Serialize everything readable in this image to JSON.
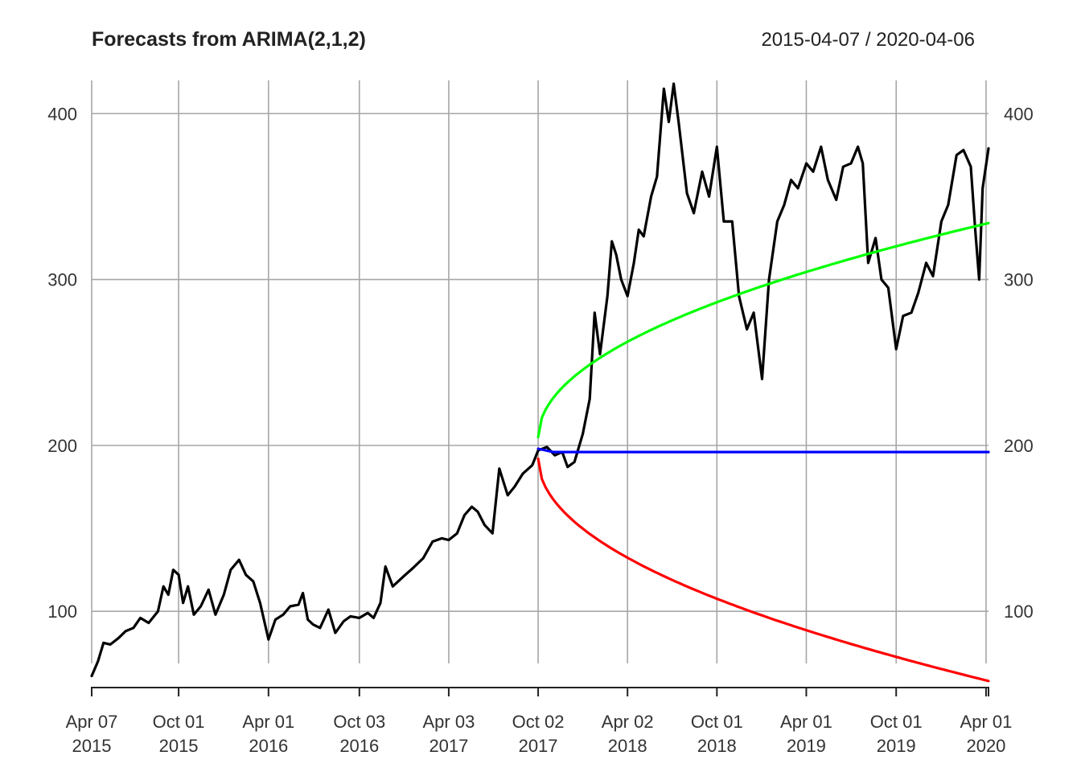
{
  "chart_data": {
    "type": "line",
    "title": "Forecasts from ARIMA(2,1,2)",
    "date_range": "2015-04-07 / 2020-04-06",
    "xlabel": "",
    "ylabel": "",
    "ylim": [
      55,
      420
    ],
    "grid": true,
    "y_ticks": [
      100,
      200,
      300,
      400
    ],
    "x_ticks": [
      {
        "date": "2015-04-07",
        "label1": "Apr 07",
        "label2": "2015"
      },
      {
        "date": "2015-10-01",
        "label1": "Oct 01",
        "label2": "2015"
      },
      {
        "date": "2016-04-01",
        "label1": "Apr 01",
        "label2": "2016"
      },
      {
        "date": "2016-10-03",
        "label1": "Oct 03",
        "label2": "2016"
      },
      {
        "date": "2017-04-03",
        "label1": "Apr 03",
        "label2": "2017"
      },
      {
        "date": "2017-10-02",
        "label1": "Oct 02",
        "label2": "2017"
      },
      {
        "date": "2018-04-02",
        "label1": "Apr 02",
        "label2": "2018"
      },
      {
        "date": "2018-10-01",
        "label1": "Oct 01",
        "label2": "2018"
      },
      {
        "date": "2019-04-01",
        "label1": "Apr 01",
        "label2": "2019"
      },
      {
        "date": "2019-10-01",
        "label1": "Oct 01",
        "label2": "2019"
      },
      {
        "date": "2020-04-01",
        "label1": "Apr 01",
        "label2": "2020"
      }
    ],
    "series": [
      {
        "color": "#000000",
        "points": [
          [
            "2015-04-07",
            61
          ],
          [
            "2015-04-20",
            70
          ],
          [
            "2015-05-01",
            81
          ],
          [
            "2015-05-15",
            80
          ],
          [
            "2015-06-01",
            84
          ],
          [
            "2015-06-15",
            88
          ],
          [
            "2015-07-01",
            90
          ],
          [
            "2015-07-15",
            96
          ],
          [
            "2015-08-01",
            93
          ],
          [
            "2015-08-20",
            100
          ],
          [
            "2015-08-31",
            115
          ],
          [
            "2015-09-10",
            110
          ],
          [
            "2015-09-20",
            125
          ],
          [
            "2015-10-01",
            122
          ],
          [
            "2015-10-10",
            105
          ],
          [
            "2015-10-20",
            115
          ],
          [
            "2015-11-01",
            98
          ],
          [
            "2015-11-15",
            103
          ],
          [
            "2015-12-01",
            113
          ],
          [
            "2015-12-15",
            98
          ],
          [
            "2016-01-01",
            110
          ],
          [
            "2016-01-15",
            125
          ],
          [
            "2016-02-01",
            131
          ],
          [
            "2016-02-15",
            122
          ],
          [
            "2016-03-01",
            118
          ],
          [
            "2016-03-15",
            105
          ],
          [
            "2016-04-01",
            83
          ],
          [
            "2016-04-15",
            95
          ],
          [
            "2016-05-01",
            98
          ],
          [
            "2016-05-15",
            103
          ],
          [
            "2016-06-01",
            104
          ],
          [
            "2016-06-10",
            111
          ],
          [
            "2016-06-20",
            95
          ],
          [
            "2016-07-01",
            92
          ],
          [
            "2016-07-15",
            90
          ],
          [
            "2016-08-01",
            101
          ],
          [
            "2016-08-15",
            87
          ],
          [
            "2016-09-01",
            94
          ],
          [
            "2016-09-15",
            97
          ],
          [
            "2016-10-03",
            96
          ],
          [
            "2016-10-20",
            99
          ],
          [
            "2016-11-01",
            96
          ],
          [
            "2016-11-15",
            105
          ],
          [
            "2016-11-25",
            127
          ],
          [
            "2016-12-10",
            115
          ],
          [
            "2017-01-01",
            121
          ],
          [
            "2017-01-20",
            126
          ],
          [
            "2017-02-10",
            132
          ],
          [
            "2017-03-01",
            142
          ],
          [
            "2017-03-20",
            144
          ],
          [
            "2017-04-03",
            143
          ],
          [
            "2017-04-20",
            147
          ],
          [
            "2017-05-05",
            158
          ],
          [
            "2017-05-20",
            163
          ],
          [
            "2017-06-01",
            160
          ],
          [
            "2017-06-15",
            152
          ],
          [
            "2017-07-01",
            147
          ],
          [
            "2017-07-15",
            186
          ],
          [
            "2017-08-01",
            170
          ],
          [
            "2017-08-15",
            175
          ],
          [
            "2017-09-01",
            183
          ],
          [
            "2017-09-20",
            188
          ],
          [
            "2017-10-02",
            197
          ],
          [
            "2017-10-20",
            199
          ],
          [
            "2017-11-05",
            194
          ],
          [
            "2017-11-20",
            196
          ],
          [
            "2017-12-01",
            187
          ],
          [
            "2017-12-15",
            190
          ],
          [
            "2018-01-01",
            207
          ],
          [
            "2018-01-15",
            228
          ],
          [
            "2018-01-25",
            280
          ],
          [
            "2018-02-05",
            255
          ],
          [
            "2018-02-20",
            290
          ],
          [
            "2018-03-01",
            323
          ],
          [
            "2018-03-10",
            315
          ],
          [
            "2018-03-20",
            300
          ],
          [
            "2018-04-02",
            290
          ],
          [
            "2018-04-15",
            310
          ],
          [
            "2018-04-25",
            330
          ],
          [
            "2018-05-05",
            326
          ],
          [
            "2018-05-20",
            350
          ],
          [
            "2018-06-01",
            362
          ],
          [
            "2018-06-15",
            415
          ],
          [
            "2018-06-25",
            395
          ],
          [
            "2018-07-05",
            418
          ],
          [
            "2018-07-15",
            395
          ],
          [
            "2018-08-01",
            352
          ],
          [
            "2018-08-15",
            340
          ],
          [
            "2018-09-01",
            365
          ],
          [
            "2018-09-15",
            350
          ],
          [
            "2018-10-01",
            380
          ],
          [
            "2018-10-15",
            335
          ],
          [
            "2018-11-01",
            335
          ],
          [
            "2018-11-15",
            290
          ],
          [
            "2018-12-01",
            270
          ],
          [
            "2018-12-15",
            280
          ],
          [
            "2019-01-01",
            240
          ],
          [
            "2019-01-15",
            300
          ],
          [
            "2019-02-01",
            335
          ],
          [
            "2019-02-15",
            345
          ],
          [
            "2019-03-01",
            360
          ],
          [
            "2019-03-15",
            355
          ],
          [
            "2019-04-01",
            370
          ],
          [
            "2019-04-15",
            365
          ],
          [
            "2019-05-01",
            380
          ],
          [
            "2019-05-15",
            360
          ],
          [
            "2019-06-01",
            348
          ],
          [
            "2019-06-15",
            368
          ],
          [
            "2019-07-01",
            370
          ],
          [
            "2019-07-15",
            380
          ],
          [
            "2019-07-25",
            370
          ],
          [
            "2019-08-05",
            310
          ],
          [
            "2019-08-20",
            325
          ],
          [
            "2019-09-01",
            300
          ],
          [
            "2019-09-15",
            295
          ],
          [
            "2019-10-01",
            258
          ],
          [
            "2019-10-15",
            278
          ],
          [
            "2019-11-01",
            280
          ],
          [
            "2019-11-15",
            292
          ],
          [
            "2019-12-01",
            310
          ],
          [
            "2019-12-15",
            302
          ],
          [
            "2020-01-01",
            335
          ],
          [
            "2020-01-15",
            345
          ],
          [
            "2020-02-01",
            375
          ],
          [
            "2020-02-15",
            378
          ],
          [
            "2020-03-01",
            368
          ],
          [
            "2020-03-10",
            330
          ],
          [
            "2020-03-18",
            300
          ],
          [
            "2020-03-25",
            355
          ],
          [
            "2020-04-06",
            379
          ]
        ]
      },
      {
        "color": "#0000ff",
        "points": [
          [
            "2017-10-02",
            198
          ],
          [
            "2017-11-01",
            196
          ],
          [
            "2018-01-01",
            196
          ],
          [
            "2020-04-06",
            196
          ]
        ]
      },
      {
        "color": "#00ff00",
        "curve": {
          "start": "2017-10-02",
          "end": "2020-04-06",
          "base": 196,
          "start_value": 205,
          "end_value": 334
        }
      },
      {
        "color": "#ff0000",
        "curve": {
          "start": "2017-10-02",
          "end": "2020-04-06",
          "base": 196,
          "start_value": 192,
          "end_value": 58
        }
      }
    ]
  }
}
